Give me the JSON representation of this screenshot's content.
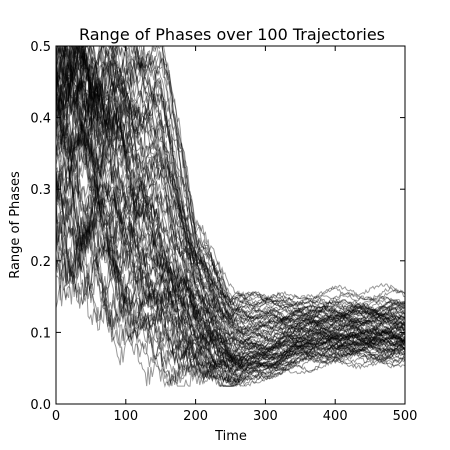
{
  "chart_data": {
    "type": "line",
    "title": "Range of Phases over 100 Trajectories",
    "xlabel": "Time",
    "ylabel": "Range of Phases",
    "xlim": [
      0,
      500
    ],
    "ylim": [
      0.0,
      0.5
    ],
    "xticks": [
      0,
      100,
      200,
      300,
      400,
      500
    ],
    "xtick_labels": [
      "0",
      "100",
      "200",
      "300",
      "400",
      "500"
    ],
    "yticks": [
      0.0,
      0.1,
      0.2,
      0.3,
      0.4,
      0.5
    ],
    "ytick_labels": [
      "0.0",
      "0.1",
      "0.2",
      "0.3",
      "0.4",
      "0.5"
    ],
    "grid": false,
    "legend": "none",
    "n_series": 100,
    "line_color": "#000000",
    "line_alpha": 0.4,
    "series_summary": {
      "x": [
        0,
        50,
        100,
        150,
        200,
        250,
        300,
        350,
        400,
        450,
        500
      ],
      "min": [
        0.22,
        0.16,
        0.11,
        0.07,
        0.05,
        0.03,
        0.04,
        0.06,
        0.07,
        0.07,
        0.07
      ],
      "median": [
        0.44,
        0.4,
        0.33,
        0.24,
        0.14,
        0.08,
        0.08,
        0.1,
        0.1,
        0.1,
        0.1
      ],
      "max": [
        0.5,
        0.5,
        0.5,
        0.49,
        0.24,
        0.15,
        0.15,
        0.14,
        0.145,
        0.145,
        0.145
      ]
    }
  }
}
